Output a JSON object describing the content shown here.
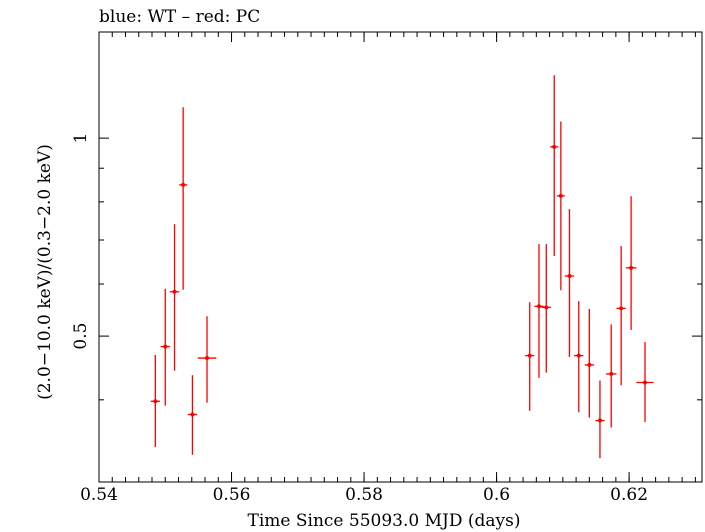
{
  "chart_data": {
    "type": "scatter",
    "title": "blue: WT – red: PC",
    "xlabel": "Time Since 55093.0 MJD (days)",
    "ylabel": "(2.0−10.0 keV)/(0.3−2.0 keV)",
    "xlim": [
      0.54,
      0.631
    ],
    "ylim": [
      0.3,
      1.45
    ],
    "yscale": "log",
    "x_ticks": [
      {
        "value": 0.54,
        "label": "0.54"
      },
      {
        "value": 0.56,
        "label": "0.56"
      },
      {
        "value": 0.58,
        "label": "0.58"
      },
      {
        "value": 0.6,
        "label": "0.6"
      },
      {
        "value": 0.62,
        "label": "0.62"
      }
    ],
    "x_minor_step": 0.002,
    "y_ticks": [
      {
        "value": 0.5,
        "label": "0.5"
      },
      {
        "value": 1.0,
        "label": "1"
      }
    ],
    "y_minor_values": [
      0.4,
      0.6,
      0.7,
      0.8,
      0.9
    ],
    "series": [
      {
        "name": "PC",
        "color": "#ff0000",
        "points": [
          {
            "x": 0.5485,
            "xerr": 0.0007,
            "y": 0.398,
            "ylo": 0.339,
            "yhi": 0.468
          },
          {
            "x": 0.55,
            "xerr": 0.0007,
            "y": 0.482,
            "ylo": 0.392,
            "yhi": 0.59
          },
          {
            "x": 0.5514,
            "xerr": 0.0007,
            "y": 0.584,
            "ylo": 0.443,
            "yhi": 0.74
          },
          {
            "x": 0.5527,
            "xerr": 0.0006,
            "y": 0.849,
            "ylo": 0.588,
            "yhi": 1.114
          },
          {
            "x": 0.5541,
            "xerr": 0.0007,
            "y": 0.38,
            "ylo": 0.33,
            "yhi": 0.436
          },
          {
            "x": 0.5563,
            "xerr": 0.0014,
            "y": 0.463,
            "ylo": 0.396,
            "yhi": 0.536
          },
          {
            "x": 0.605,
            "xerr": 0.0007,
            "y": 0.467,
            "ylo": 0.385,
            "yhi": 0.563
          },
          {
            "x": 0.6064,
            "xerr": 0.0007,
            "y": 0.555,
            "ylo": 0.432,
            "yhi": 0.69
          },
          {
            "x": 0.6075,
            "xerr": 0.0007,
            "y": 0.553,
            "ylo": 0.44,
            "yhi": 0.69
          },
          {
            "x": 0.6087,
            "xerr": 0.0006,
            "y": 0.97,
            "ylo": 0.662,
            "yhi": 1.246
          },
          {
            "x": 0.6097,
            "xerr": 0.0006,
            "y": 0.817,
            "ylo": 0.587,
            "yhi": 1.06
          },
          {
            "x": 0.611,
            "xerr": 0.0007,
            "y": 0.617,
            "ylo": 0.465,
            "yhi": 0.78
          },
          {
            "x": 0.6124,
            "xerr": 0.0007,
            "y": 0.467,
            "ylo": 0.383,
            "yhi": 0.565
          },
          {
            "x": 0.614,
            "xerr": 0.0007,
            "y": 0.452,
            "ylo": 0.376,
            "yhi": 0.55
          },
          {
            "x": 0.6156,
            "xerr": 0.0007,
            "y": 0.372,
            "ylo": 0.326,
            "yhi": 0.428
          },
          {
            "x": 0.6173,
            "xerr": 0.0008,
            "y": 0.438,
            "ylo": 0.363,
            "yhi": 0.521
          },
          {
            "x": 0.6188,
            "xerr": 0.0007,
            "y": 0.551,
            "ylo": 0.421,
            "yhi": 0.685
          },
          {
            "x": 0.6203,
            "xerr": 0.0008,
            "y": 0.635,
            "ylo": 0.511,
            "yhi": 0.816
          },
          {
            "x": 0.6224,
            "xerr": 0.0013,
            "y": 0.425,
            "ylo": 0.37,
            "yhi": 0.49
          }
        ]
      }
    ]
  }
}
